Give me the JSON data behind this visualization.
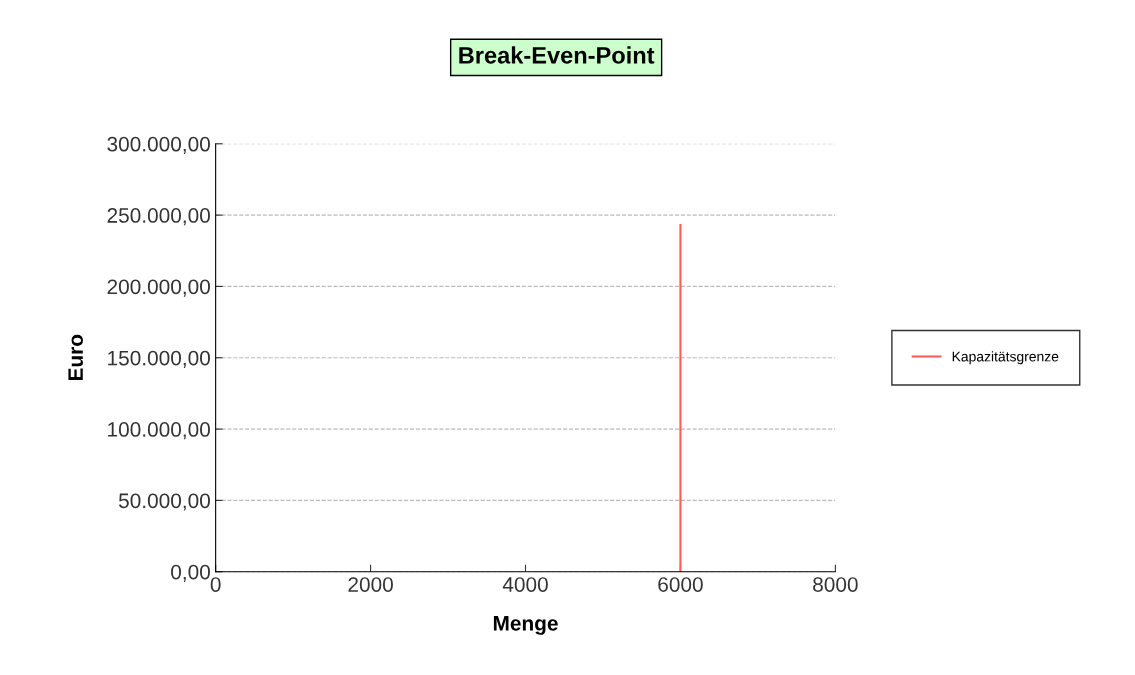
{
  "chart_data": {
    "type": "line",
    "title": "Break-Even-Point",
    "xlabel": "Menge",
    "ylabel": "Euro",
    "series": [
      {
        "name": "Kapazitätsgrenze",
        "color": "#ff5a5a",
        "x": [
          6000,
          6000
        ],
        "values": [
          0,
          243000
        ]
      }
    ],
    "xlim": [
      0,
      8000
    ],
    "xticks": [
      0,
      2000,
      4000,
      6000,
      8000
    ],
    "ylim": [
      0,
      300000
    ],
    "yticks": [
      {
        "value": 0,
        "label": "0,00"
      },
      {
        "value": 50000,
        "label": "50.000,00"
      },
      {
        "value": 100000,
        "label": "100.000,00"
      },
      {
        "value": 150000,
        "label": "150.000,00"
      },
      {
        "value": 200000,
        "label": "200.000,00"
      },
      {
        "value": 250000,
        "label": "250.000,00"
      },
      {
        "value": 300000,
        "label": "300.000,00"
      }
    ],
    "grid": "y",
    "legend": "right",
    "line_style": "solid",
    "marker": "none"
  }
}
